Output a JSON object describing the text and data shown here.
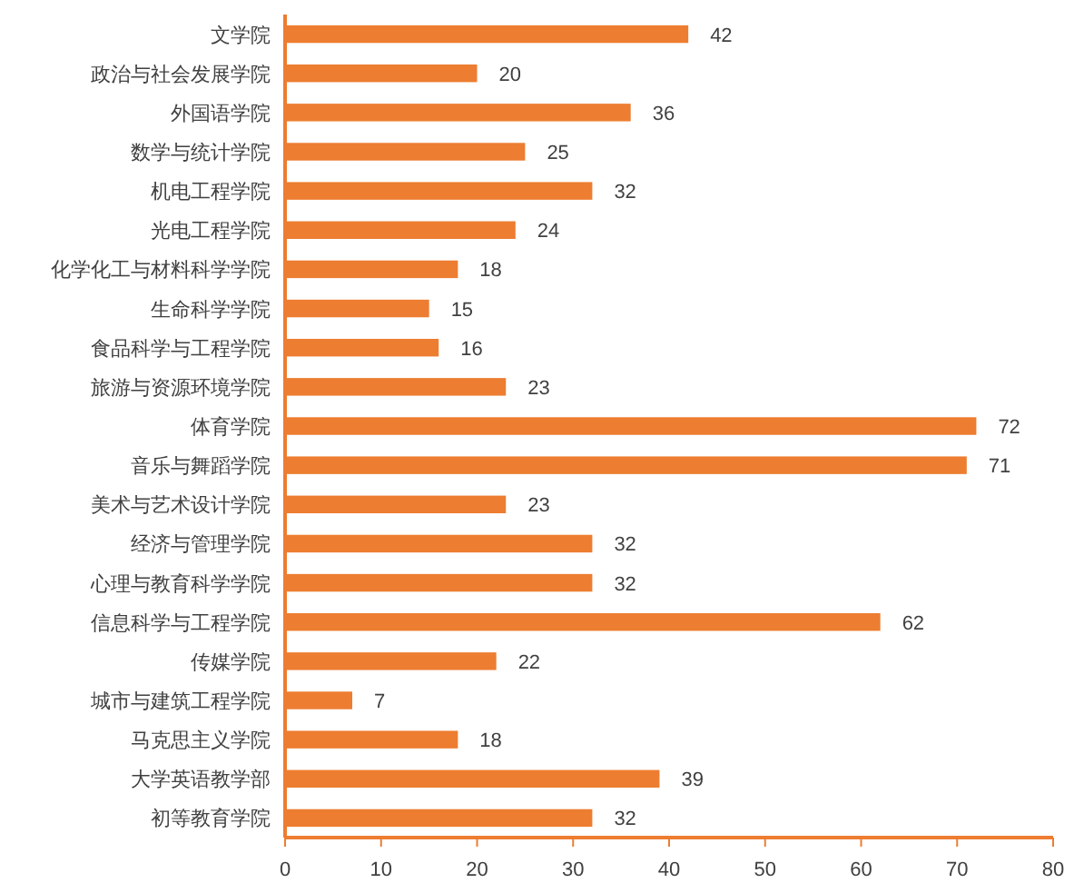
{
  "chart_data": {
    "type": "bar",
    "orientation": "horizontal",
    "categories": [
      "文学院",
      "政治与社会发展学院",
      "外国语学院",
      "数学与统计学院",
      "机电工程学院",
      "光电工程学院",
      "化学化工与材料科学学院",
      "生命科学学院",
      "食品科学与工程学院",
      "旅游与资源环境学院",
      "体育学院",
      "音乐与舞蹈学院",
      "美术与艺术设计学院",
      "经济与管理学院",
      "心理与教育科学学院",
      "信息科学与工程学院",
      "传媒学院",
      "城市与建筑工程学院",
      "马克思主义学院",
      "大学英语教学部",
      "初等教育学院"
    ],
    "values": [
      42,
      20,
      36,
      25,
      32,
      24,
      18,
      15,
      16,
      23,
      72,
      71,
      23,
      32,
      32,
      62,
      22,
      7,
      18,
      39,
      32
    ],
    "color": "#ed7d31",
    "xlim": [
      0,
      80
    ],
    "xticks": [
      0,
      10,
      20,
      30,
      40,
      50,
      60,
      70,
      80
    ],
    "data_labels": true,
    "grid": false
  }
}
